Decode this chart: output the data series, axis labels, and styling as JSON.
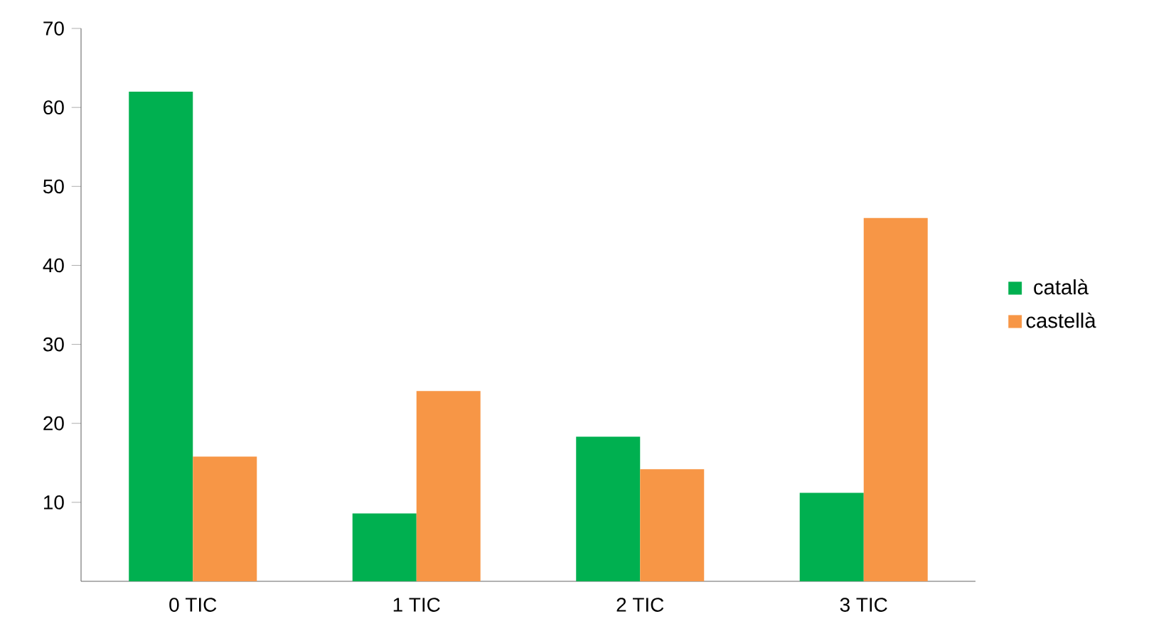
{
  "chart_data": {
    "type": "bar",
    "categories": [
      "0 TIC",
      "1 TIC",
      "2 TIC",
      "3 TIC"
    ],
    "series": [
      {
        "name": "català",
        "color": "#00b050",
        "values": [
          62,
          8.6,
          18.3,
          11.2
        ]
      },
      {
        "name": "castellà",
        "color": "#f79646",
        "values": [
          15.8,
          24.1,
          14.2,
          46
        ]
      }
    ],
    "ylim": [
      0,
      70
    ],
    "yticks": [
      10,
      20,
      30,
      40,
      50,
      60,
      70
    ],
    "grid": false,
    "legend": "right"
  }
}
